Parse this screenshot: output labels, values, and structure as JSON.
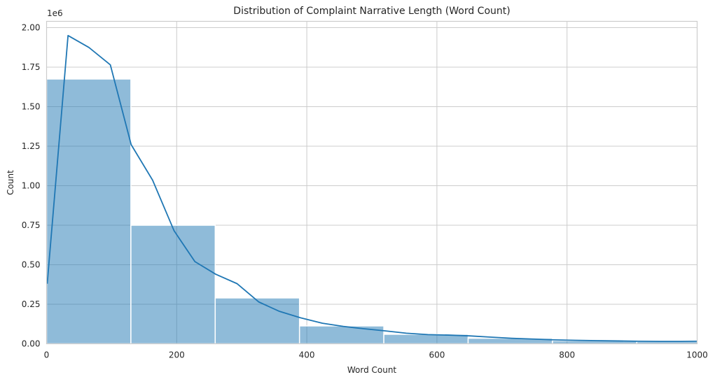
{
  "chart_data": {
    "type": "bar",
    "title": "Distribution of Complaint Narrative Length (Word Count)",
    "xlabel": "Word Count",
    "ylabel": "Count",
    "offset_text": "1e6",
    "xlim": [
      0,
      1000
    ],
    "ylim": [
      0,
      2040000
    ],
    "grid": true,
    "x_ticks": [
      0,
      200,
      400,
      600,
      800,
      1000
    ],
    "x_tick_labels": [
      "0",
      "200",
      "400",
      "600",
      "800",
      "1000"
    ],
    "y_ticks": [
      0,
      250000,
      500000,
      750000,
      1000000,
      1250000,
      1500000,
      1750000,
      2000000
    ],
    "y_tick_labels": [
      "0.00",
      "0.25",
      "0.50",
      "0.75",
      "1.00",
      "1.25",
      "1.50",
      "1.75",
      "2.00"
    ],
    "bins": [
      {
        "x0": 0,
        "x1": 129.6,
        "count": 1675000
      },
      {
        "x0": 129.6,
        "x1": 259.2,
        "count": 750000
      },
      {
        "x0": 259.2,
        "x1": 388.8,
        "count": 290000
      },
      {
        "x0": 388.8,
        "x1": 518.4,
        "count": 113000
      },
      {
        "x0": 518.4,
        "x1": 648,
        "count": 60000
      },
      {
        "x0": 648,
        "x1": 777.6,
        "count": 35000
      },
      {
        "x0": 777.6,
        "x1": 907.2,
        "count": 20000
      },
      {
        "x0": 907.2,
        "x1": 1036.8,
        "count": 14000
      }
    ],
    "series": [
      {
        "type": "line",
        "x": [
          1,
          33,
          65,
          98,
          130,
          163,
          196,
          228,
          260,
          293,
          326,
          358,
          390,
          424,
          456,
          488,
          520,
          553,
          586,
          618,
          650,
          683,
          715,
          748,
          780,
          812,
          845,
          878,
          910,
          942,
          975,
          1000
        ],
        "values": [
          380000,
          1950000,
          1875000,
          1765000,
          1260000,
          1035000,
          715000,
          520000,
          440000,
          380000,
          265000,
          205000,
          165000,
          130000,
          110000,
          95000,
          82000,
          67000,
          58000,
          55000,
          50000,
          42000,
          35000,
          30000,
          25000,
          22000,
          20000,
          18000,
          16000,
          15000,
          15000,
          16000
        ]
      }
    ]
  }
}
